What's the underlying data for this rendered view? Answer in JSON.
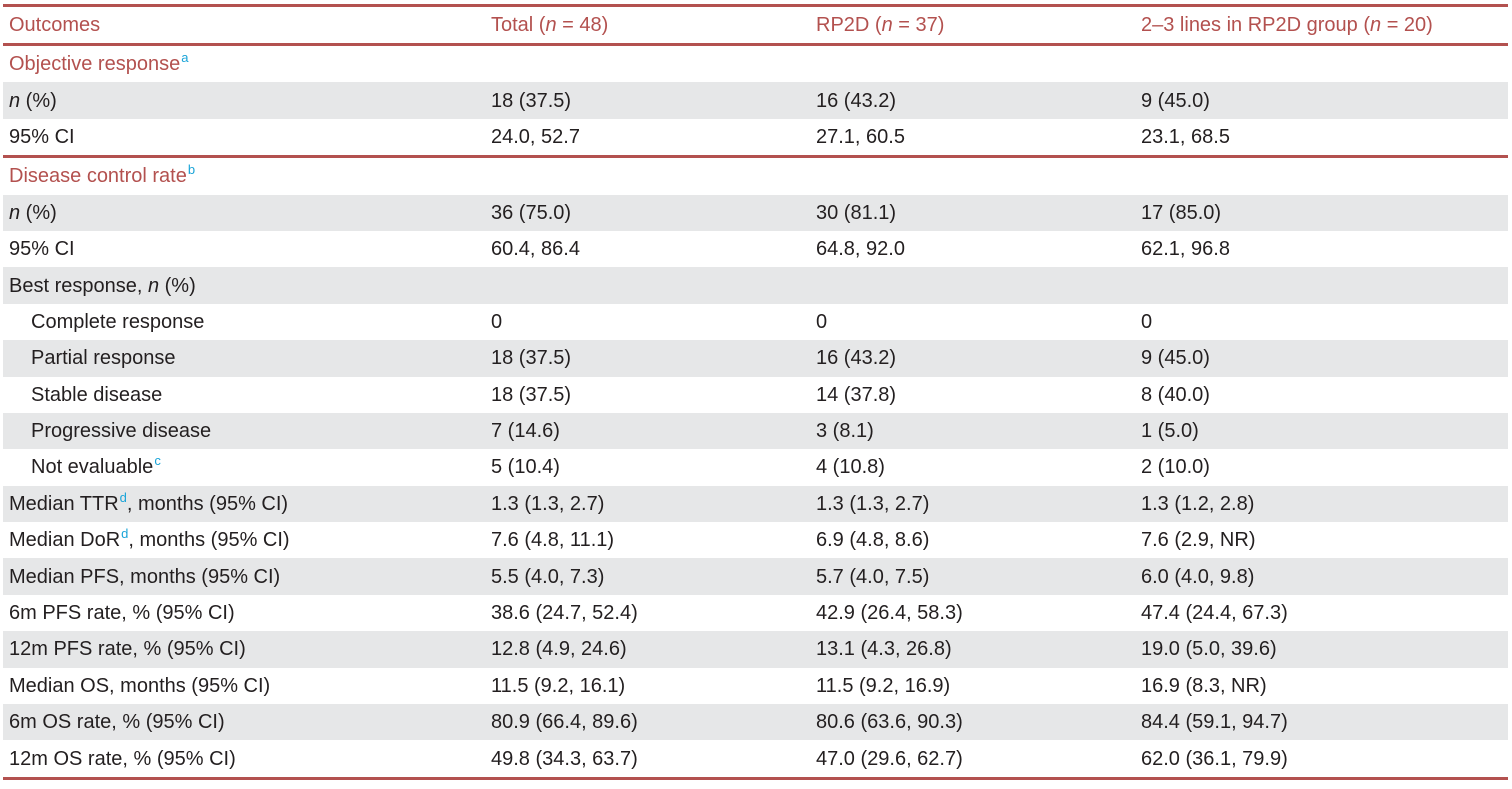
{
  "colors": {
    "accent": "#b3514f",
    "shade": "#e6e7e8",
    "footnote": "#1aa4d8",
    "text": "#231f20"
  },
  "header": {
    "col0": "Outcomes",
    "col1_pre": "Total (",
    "col1_n": "n",
    "col1_post": " = 48)",
    "col2_pre": "RP2D (",
    "col2_n": "n",
    "col2_post": " = 37)",
    "col3_pre": "2–3 lines in RP2D group (",
    "col3_n": "n",
    "col3_post": " = 20)"
  },
  "sections": {
    "orr": {
      "label": "Objective response",
      "sup": "a"
    },
    "dcr": {
      "label": "Disease control rate",
      "sup": "b"
    },
    "best": {
      "label_pre": "Best response, ",
      "label_n": "n",
      "label_post": " (%)"
    }
  },
  "labels": {
    "n_italic": "n",
    "n_pct": " (%)",
    "ci": "95% CI",
    "ttr_pre": "Median TTR",
    "ttr_sup": "d",
    "ttr_post": ", months (95% CI)",
    "dor_pre": "Median DoR",
    "dor_sup": "d",
    "dor_post": ", months (95% CI)"
  },
  "rows": {
    "orr_n": [
      "18 (37.5)",
      "16 (43.2)",
      "9 (45.0)"
    ],
    "orr_ci": [
      "24.0, 52.7",
      "27.1, 60.5",
      "23.1, 68.5"
    ],
    "dcr_n": [
      "36 (75.0)",
      "30 (81.1)",
      "17 (85.0)"
    ],
    "dcr_ci": [
      "60.4, 86.4",
      "64.8, 92.0",
      "62.1, 96.8"
    ],
    "cr": {
      "label": "Complete response",
      "values": [
        "0",
        "0",
        "0"
      ]
    },
    "pr": {
      "label": "Partial response",
      "values": [
        "18 (37.5)",
        "16 (43.2)",
        "9 (45.0)"
      ]
    },
    "sd": {
      "label": "Stable disease",
      "values": [
        "18 (37.5)",
        "14 (37.8)",
        "8 (40.0)"
      ]
    },
    "pd": {
      "label": "Progressive disease",
      "values": [
        "7 (14.6)",
        "3 (8.1)",
        "1 (5.0)"
      ]
    },
    "ne": {
      "label": "Not evaluable",
      "sup": "c",
      "values": [
        "5 (10.4)",
        "4 (10.8)",
        "2 (10.0)"
      ]
    },
    "ttr": [
      "1.3 (1.3, 2.7)",
      "1.3 (1.3, 2.7)",
      "1.3 (1.2, 2.8)"
    ],
    "dor": [
      "7.6 (4.8, 11.1)",
      "6.9 (4.8, 8.6)",
      "7.6 (2.9, NR)"
    ],
    "pfs": {
      "label": "Median PFS, months (95% CI)",
      "values": [
        "5.5 (4.0, 7.3)",
        "5.7 (4.0, 7.5)",
        "6.0 (4.0, 9.8)"
      ]
    },
    "pfs6": {
      "label": "6m PFS rate, % (95% CI)",
      "values": [
        "38.6 (24.7, 52.4)",
        "42.9 (26.4, 58.3)",
        "47.4 (24.4, 67.3)"
      ]
    },
    "pfs12": {
      "label": "12m PFS rate, % (95% CI)",
      "values": [
        "12.8 (4.9, 24.6)",
        "13.1 (4.3, 26.8)",
        "19.0 (5.0, 39.6)"
      ]
    },
    "os": {
      "label": "Median OS, months (95% CI)",
      "values": [
        "11.5 (9.2, 16.1)",
        "11.5 (9.2, 16.9)",
        "16.9 (8.3, NR)"
      ]
    },
    "os6": {
      "label": "6m OS rate, % (95% CI)",
      "values": [
        "80.9 (66.4, 89.6)",
        "80.6 (63.6, 90.3)",
        "84.4 (59.1, 94.7)"
      ]
    },
    "os12": {
      "label": "12m OS rate, % (95% CI)",
      "values": [
        "49.8 (34.3, 63.7)",
        "47.0 (29.6, 62.7)",
        "62.0 (36.1, 79.9)"
      ]
    }
  }
}
